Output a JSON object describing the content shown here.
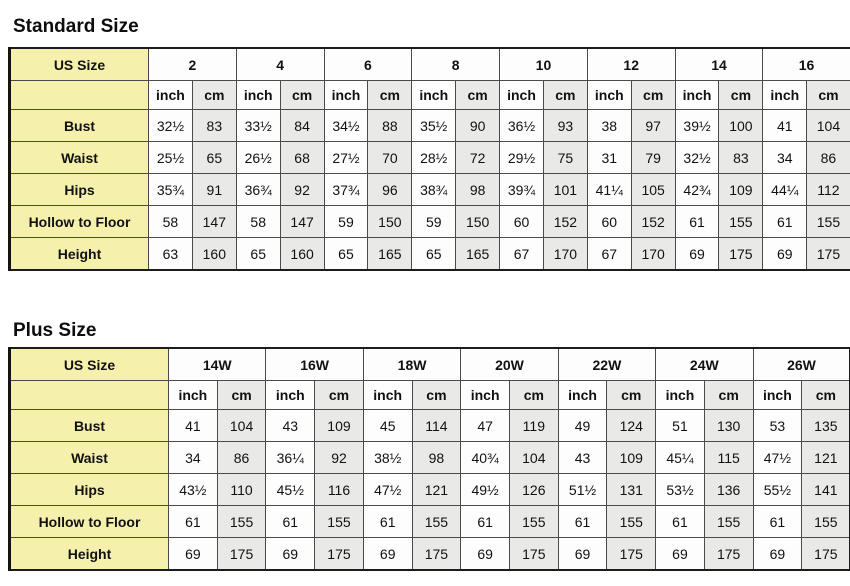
{
  "standard": {
    "title": "Standard Size",
    "corner_label": "US Size",
    "unit_labels": [
      "inch",
      "cm"
    ],
    "sizes": [
      "2",
      "4",
      "6",
      "8",
      "10",
      "12",
      "14",
      "16"
    ],
    "rows": [
      {
        "label": "Bust",
        "values": [
          [
            "32½",
            "83"
          ],
          [
            "33½",
            "84"
          ],
          [
            "34½",
            "88"
          ],
          [
            "35½",
            "90"
          ],
          [
            "36½",
            "93"
          ],
          [
            "38",
            "97"
          ],
          [
            "39½",
            "100"
          ],
          [
            "41",
            "104"
          ]
        ]
      },
      {
        "label": "Waist",
        "values": [
          [
            "25½",
            "65"
          ],
          [
            "26½",
            "68"
          ],
          [
            "27½",
            "70"
          ],
          [
            "28½",
            "72"
          ],
          [
            "29½",
            "75"
          ],
          [
            "31",
            "79"
          ],
          [
            "32½",
            "83"
          ],
          [
            "34",
            "86"
          ]
        ]
      },
      {
        "label": "Hips",
        "values": [
          [
            "35¾",
            "91"
          ],
          [
            "36¾",
            "92"
          ],
          [
            "37¾",
            "96"
          ],
          [
            "38¾",
            "98"
          ],
          [
            "39¾",
            "101"
          ],
          [
            "41¼",
            "105"
          ],
          [
            "42¾",
            "109"
          ],
          [
            "44¼",
            "112"
          ]
        ]
      },
      {
        "label": "Hollow to Floor",
        "values": [
          [
            "58",
            "147"
          ],
          [
            "58",
            "147"
          ],
          [
            "59",
            "150"
          ],
          [
            "59",
            "150"
          ],
          [
            "60",
            "152"
          ],
          [
            "60",
            "152"
          ],
          [
            "61",
            "155"
          ],
          [
            "61",
            "155"
          ]
        ]
      },
      {
        "label": "Height",
        "values": [
          [
            "63",
            "160"
          ],
          [
            "65",
            "160"
          ],
          [
            "65",
            "165"
          ],
          [
            "65",
            "165"
          ],
          [
            "67",
            "170"
          ],
          [
            "67",
            "170"
          ],
          [
            "69",
            "175"
          ],
          [
            "69",
            "175"
          ]
        ]
      }
    ]
  },
  "plus": {
    "title": "Plus Size",
    "corner_label": "US Size",
    "unit_labels": [
      "inch",
      "cm"
    ],
    "sizes": [
      "14W",
      "16W",
      "18W",
      "20W",
      "22W",
      "24W",
      "26W"
    ],
    "rows": [
      {
        "label": "Bust",
        "values": [
          [
            "41",
            "104"
          ],
          [
            "43",
            "109"
          ],
          [
            "45",
            "114"
          ],
          [
            "47",
            "119"
          ],
          [
            "49",
            "124"
          ],
          [
            "51",
            "130"
          ],
          [
            "53",
            "135"
          ]
        ]
      },
      {
        "label": "Waist",
        "values": [
          [
            "34",
            "86"
          ],
          [
            "36¼",
            "92"
          ],
          [
            "38½",
            "98"
          ],
          [
            "40¾",
            "104"
          ],
          [
            "43",
            "109"
          ],
          [
            "45¼",
            "115"
          ],
          [
            "47½",
            "121"
          ]
        ]
      },
      {
        "label": "Hips",
        "values": [
          [
            "43½",
            "110"
          ],
          [
            "45½",
            "116"
          ],
          [
            "47½",
            "121"
          ],
          [
            "49½",
            "126"
          ],
          [
            "51½",
            "131"
          ],
          [
            "53½",
            "136"
          ],
          [
            "55½",
            "141"
          ]
        ]
      },
      {
        "label": "Hollow to Floor",
        "values": [
          [
            "61",
            "155"
          ],
          [
            "61",
            "155"
          ],
          [
            "61",
            "155"
          ],
          [
            "61",
            "155"
          ],
          [
            "61",
            "155"
          ],
          [
            "61",
            "155"
          ],
          [
            "61",
            "155"
          ]
        ]
      },
      {
        "label": "Height",
        "values": [
          [
            "69",
            "175"
          ],
          [
            "69",
            "175"
          ],
          [
            "69",
            "175"
          ],
          [
            "69",
            "175"
          ],
          [
            "69",
            "175"
          ],
          [
            "69",
            "175"
          ],
          [
            "69",
            "175"
          ]
        ]
      }
    ]
  },
  "colors": {
    "label_background": "#f5f1ac",
    "cm_column_background": "#e9e9e7",
    "inch_column_background": "#fdfdfd",
    "grid_border": "#4a4a4a"
  }
}
